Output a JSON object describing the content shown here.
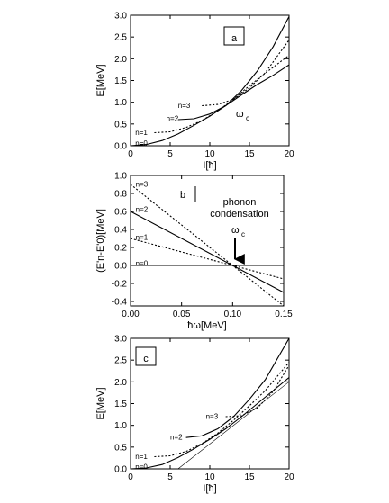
{
  "chart_data": [
    {
      "type": "line",
      "panel_label": "a",
      "xlabel": "I[ħ]",
      "ylabel": "E[MeV]",
      "xlim": [
        0,
        20
      ],
      "ylim": [
        0,
        3.0
      ],
      "xticks": [
        0,
        5,
        10,
        15,
        20
      ],
      "yticks": [
        0.0,
        0.5,
        1.0,
        1.5,
        2.0,
        2.5,
        3.0
      ],
      "annotation": "ω",
      "annotation_sub": "c",
      "series": [
        {
          "name": "n=0",
          "style": "solid",
          "label_at": [
            0.6,
            0.05
          ],
          "x": [
            0,
            2,
            4,
            6,
            8,
            10,
            12,
            14,
            16,
            18,
            20
          ],
          "y": [
            0.0,
            0.03,
            0.12,
            0.27,
            0.47,
            0.68,
            0.92,
            1.17,
            1.41,
            1.62,
            1.86
          ]
        },
        {
          "name": "n=1",
          "style": "dotted",
          "label_at": [
            0.6,
            0.3
          ],
          "x": [
            3,
            5,
            7,
            9,
            11,
            13,
            15,
            17,
            20
          ],
          "y": [
            0.3,
            0.32,
            0.42,
            0.58,
            0.8,
            1.07,
            1.38,
            1.67,
            2.08
          ]
        },
        {
          "name": "n=2",
          "style": "solid",
          "label_at": [
            4.5,
            0.62
          ],
          "x": [
            6,
            8,
            10,
            12,
            14,
            16,
            18,
            20
          ],
          "y": [
            0.6,
            0.62,
            0.73,
            0.92,
            1.27,
            1.72,
            2.28,
            2.97
          ]
        },
        {
          "name": "n=3",
          "style": "dotted",
          "label_at": [
            6.0,
            0.92
          ],
          "x": [
            9,
            11,
            13,
            15,
            17,
            20
          ],
          "y": [
            0.92,
            0.95,
            1.07,
            1.33,
            1.68,
            2.43
          ]
        }
      ]
    },
    {
      "type": "line",
      "panel_label": "b",
      "xlabel": "ħω[MeV]",
      "ylabel": "(E'n-E'0)[MeV]",
      "xlim": [
        0.0,
        0.15
      ],
      "ylim": [
        -0.45,
        1.0
      ],
      "xticks": [
        0.0,
        0.05,
        0.1,
        0.15
      ],
      "yticks": [
        -0.4,
        -0.2,
        0.0,
        0.2,
        0.4,
        0.6,
        0.8,
        1.0
      ],
      "annotation_text": [
        "phonon",
        "condensation"
      ],
      "annotation": "ω",
      "annotation_sub": "c",
      "series": [
        {
          "name": "n=0",
          "style": "solid",
          "label_at": [
            0.005,
            0.02
          ],
          "x": [
            0.0,
            0.15
          ],
          "y": [
            0.0,
            0.0
          ]
        },
        {
          "name": "n=1",
          "style": "dotted",
          "label_at": [
            0.005,
            0.31
          ],
          "x": [
            0.0,
            0.15
          ],
          "y": [
            0.3,
            -0.15
          ]
        },
        {
          "name": "n=2",
          "style": "solid",
          "label_at": [
            0.005,
            0.62
          ],
          "x": [
            0.0,
            0.15
          ],
          "y": [
            0.6,
            -0.3
          ]
        },
        {
          "name": "n=3",
          "style": "dotted",
          "label_at": [
            0.005,
            0.9
          ],
          "x": [
            0.0,
            0.15
          ],
          "y": [
            0.9,
            -0.45
          ]
        }
      ]
    },
    {
      "type": "line",
      "panel_label": "c",
      "xlabel": "I[ħ]",
      "ylabel": "E[MeV]",
      "xlim": [
        0,
        20
      ],
      "ylim": [
        0,
        3.0
      ],
      "xticks": [
        0,
        5,
        10,
        15,
        20
      ],
      "yticks": [
        0.0,
        0.5,
        1.0,
        1.5,
        2.0,
        2.5,
        3.0
      ],
      "series": [
        {
          "name": "n=0",
          "style": "solid",
          "label_at": [
            0.6,
            0.04
          ],
          "x": [
            0,
            2,
            4,
            6,
            8,
            10,
            12,
            14,
            16,
            18,
            20
          ],
          "y": [
            0.0,
            0.02,
            0.1,
            0.26,
            0.46,
            0.68,
            0.92,
            1.2,
            1.5,
            1.8,
            2.1
          ]
        },
        {
          "name": "n=1",
          "style": "dotted",
          "label_at": [
            0.6,
            0.28
          ],
          "x": [
            3,
            5,
            7,
            9,
            11,
            13,
            15,
            17,
            20
          ],
          "y": [
            0.28,
            0.3,
            0.4,
            0.58,
            0.82,
            1.12,
            1.45,
            1.8,
            2.45
          ]
        },
        {
          "name": "n=2",
          "style": "solid",
          "label_at": [
            5.0,
            0.72
          ],
          "x": [
            7,
            9,
            11,
            13,
            15,
            17,
            20
          ],
          "y": [
            0.72,
            0.76,
            0.92,
            1.2,
            1.6,
            2.05,
            3.0
          ]
        },
        {
          "name": "n=3",
          "style": "dotted",
          "label_at": [
            9.5,
            1.2
          ],
          "x": [
            12,
            14,
            16,
            18,
            20
          ],
          "y": [
            1.2,
            1.22,
            1.4,
            1.78,
            2.38
          ]
        },
        {
          "name": "",
          "style": "thin",
          "x": [
            6,
            20
          ],
          "y": [
            0.0,
            2.0
          ]
        }
      ]
    }
  ]
}
